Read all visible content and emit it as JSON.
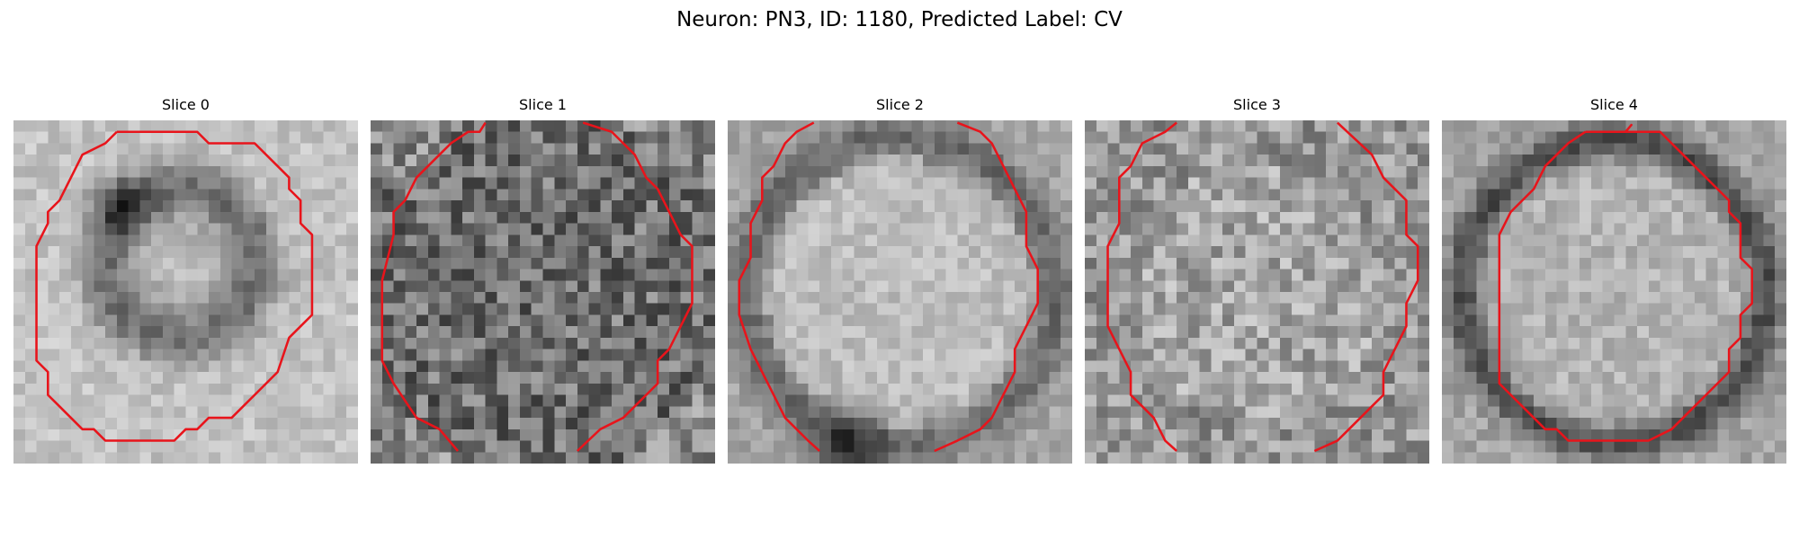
{
  "figure": {
    "title": "Neuron: PN3, ID: 1180, Predicted Label: CV",
    "contour_color": "#e8141b",
    "colormap": "gray"
  },
  "slices": [
    {
      "title": "Slice 0",
      "brightness": "light",
      "ring": "dark-blurry"
    },
    {
      "title": "Slice 1",
      "brightness": "dark",
      "ring": "none"
    },
    {
      "title": "Slice 2",
      "brightness": "medium",
      "ring": "dark-smooth"
    },
    {
      "title": "Slice 3",
      "brightness": "medium",
      "ring": "none"
    },
    {
      "title": "Slice 4",
      "brightness": "medium",
      "ring": "dark-strong"
    }
  ]
}
